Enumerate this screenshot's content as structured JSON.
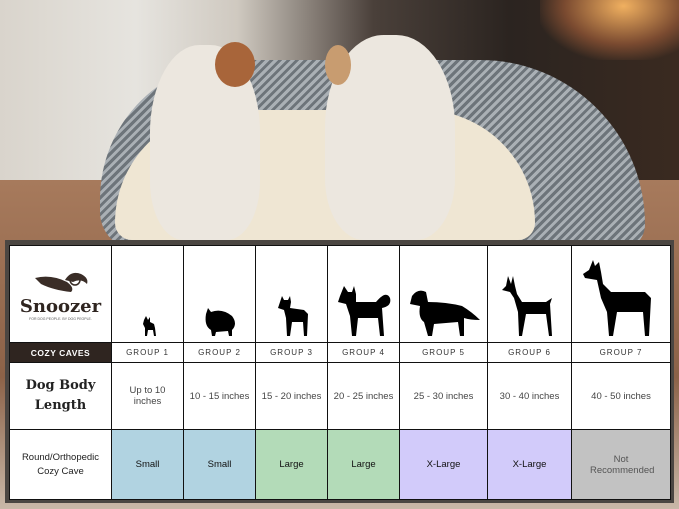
{
  "brand": {
    "name": "Snoozer",
    "tagline": "FOR DOG PEOPLE. BY DOG PEOPLE."
  },
  "table": {
    "product_line": "COZY CAVES",
    "row_length_label": "Dog Body Length",
    "row_size_label": "Round/Orthopedic Cozy Cave",
    "colors": {
      "Small": "#b1d3e1",
      "Large": "#b3dbb8",
      "X-Large": "#d2cbfa",
      "Not Recommended": "#c2c2c2"
    },
    "groups": [
      {
        "label": "GROUP 1",
        "length": "Up to 10 inches",
        "size": "Small",
        "icon": "chihuahua-silhouette-icon"
      },
      {
        "label": "GROUP 2",
        "length": "10 - 15 inches",
        "size": "Small",
        "icon": "pomeranian-silhouette-icon"
      },
      {
        "label": "GROUP 3",
        "length": "15 - 20 inches",
        "size": "Large",
        "icon": "boston-terrier-silhouette-icon"
      },
      {
        "label": "GROUP 4",
        "length": "20 - 25 inches",
        "size": "Large",
        "icon": "shiba-inu-silhouette-icon"
      },
      {
        "label": "GROUP 5",
        "length": "25 - 30 inches",
        "size": "X-Large",
        "icon": "golden-retriever-silhouette-icon"
      },
      {
        "label": "GROUP 6",
        "length": "30 - 40 inches",
        "size": "X-Large",
        "icon": "doberman-silhouette-icon"
      },
      {
        "label": "GROUP 7",
        "length": "40 - 50 inches",
        "size": "Not Recommended",
        "icon": "great-dane-silhouette-icon"
      }
    ]
  }
}
